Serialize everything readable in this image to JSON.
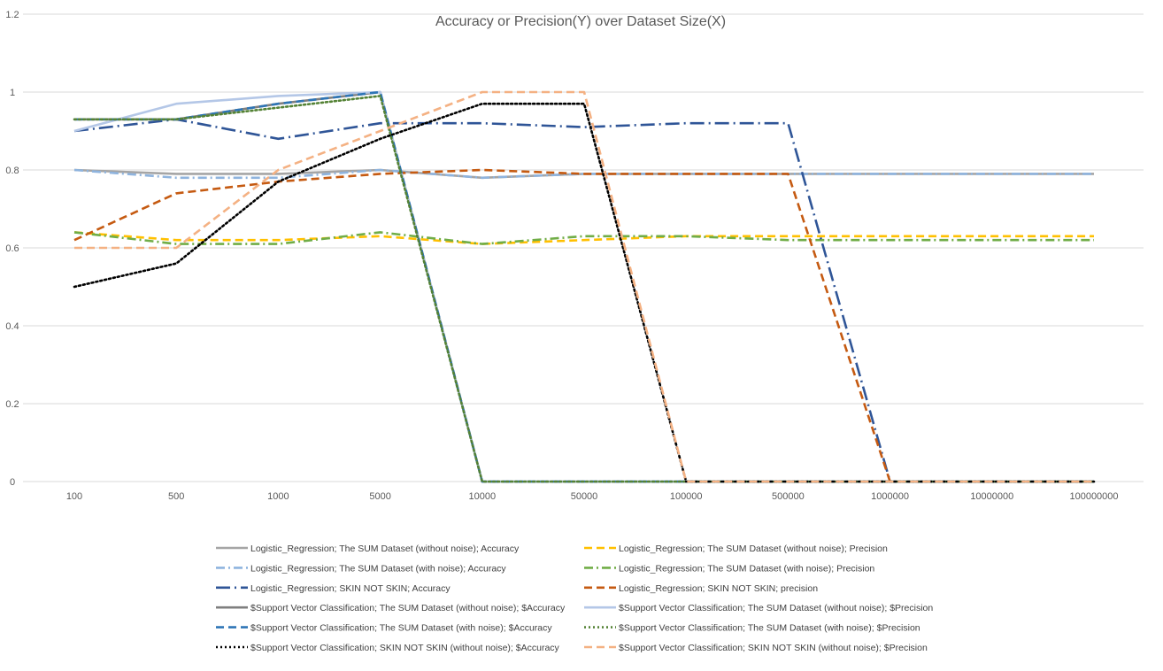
{
  "chart_data": {
    "type": "line",
    "title": "Accuracy or Precision(Y) over Dataset Size(X)",
    "xlabel": "",
    "ylabel": "",
    "categories": [
      "100",
      "500",
      "1000",
      "5000",
      "10000",
      "50000",
      "100000",
      "500000",
      "1000000",
      "10000000",
      "100000000"
    ],
    "y_ticks": [
      "0",
      "0.2",
      "0.4",
      "0.6",
      "0.8",
      "1",
      "1.2"
    ],
    "ylim": [
      0,
      1.2
    ],
    "grid": true,
    "legend_position": "bottom",
    "series": [
      {
        "name": "Logistic_Regression; The SUM Dataset (without noise); Accuracy",
        "color": "#a5a5a5",
        "style": "solid",
        "values": [
          0.8,
          0.79,
          0.79,
          0.8,
          0.78,
          0.79,
          0.79,
          0.79,
          0.79,
          0.79,
          0.79
        ]
      },
      {
        "name": "Logistic_Regression; The SUM Dataset (without noise); Precision",
        "color": "#ffc000",
        "style": "dash",
        "values": [
          0.64,
          0.62,
          0.62,
          0.63,
          0.61,
          0.62,
          0.63,
          0.63,
          0.63,
          0.63,
          0.63
        ]
      },
      {
        "name": "Logistic_Regression; The SUM Dataset (with noise); Accuracy",
        "color": "#8fb4de",
        "style": "dashdot",
        "values": [
          0.8,
          0.78,
          0.78,
          0.8,
          0.78,
          0.79,
          0.79,
          0.79,
          0.79,
          0.79,
          0.79
        ]
      },
      {
        "name": "Logistic_Regression; The SUM Dataset (with noise); Precision",
        "color": "#70ad47",
        "style": "dashdot",
        "values": [
          0.64,
          0.61,
          0.61,
          0.64,
          0.61,
          0.63,
          0.63,
          0.62,
          0.62,
          0.62,
          0.62
        ]
      },
      {
        "name": "Logistic_Regression; SKIN NOT SKIN; Accuracy",
        "color": "#2f5597",
        "style": "longdashdot",
        "values": [
          0.9,
          0.93,
          0.88,
          0.92,
          0.92,
          0.91,
          0.92,
          0.92,
          0,
          0,
          0
        ]
      },
      {
        "name": "Logistic_Regression; SKIN NOT SKIN; precision",
        "color": "#c55a11",
        "style": "dash",
        "values": [
          0.62,
          0.74,
          0.77,
          0.79,
          0.8,
          0.79,
          0.79,
          0.79,
          0,
          0,
          0
        ]
      },
      {
        "name": "$Support Vector Classification; The SUM Dataset (without noise); $Accuracy",
        "color": "#7f7f7f",
        "style": "solid",
        "values": [
          0.93,
          0.93,
          0.97,
          1.0,
          0,
          0,
          0,
          0,
          0,
          0,
          0
        ]
      },
      {
        "name": "$Support Vector Classification; The SUM Dataset (without noise); $Precision",
        "color": "#b4c7e7",
        "style": "solid",
        "values": [
          0.9,
          0.97,
          0.99,
          1.0,
          0,
          0,
          0,
          0,
          0,
          0,
          0
        ]
      },
      {
        "name": "$Support Vector Classification; The SUM Dataset (with noise); $Accuracy",
        "color": "#2e75b6",
        "style": "dash",
        "values": [
          0.93,
          0.93,
          0.97,
          1.0,
          0,
          0,
          0,
          0,
          0,
          0,
          0
        ]
      },
      {
        "name": "$Support Vector Classification; The SUM Dataset (with noise); $Precision",
        "color": "#548235",
        "style": "dot",
        "values": [
          0.93,
          0.93,
          0.96,
          0.99,
          0,
          0,
          0,
          0,
          0,
          0,
          0
        ]
      },
      {
        "name": "$Support Vector Classification; SKIN NOT SKIN (without noise); $Accuracy",
        "color": "#000000",
        "style": "dot",
        "values": [
          0.5,
          0.56,
          0.77,
          0.88,
          0.97,
          0.97,
          0,
          0,
          0,
          0,
          0
        ]
      },
      {
        "name": "$Support Vector Classification; SKIN NOT SKIN (without noise); $Precision",
        "color": "#f4b183",
        "style": "dash",
        "values": [
          0.6,
          0.6,
          0.8,
          0.9,
          1.0,
          1.0,
          0,
          0,
          0,
          0,
          0
        ]
      }
    ]
  }
}
